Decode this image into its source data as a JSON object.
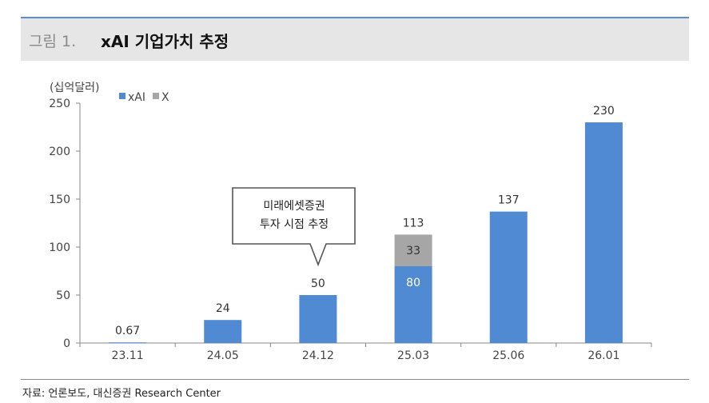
{
  "header": {
    "prefix": "그림 1.",
    "title": "xAI 기업가치 추정"
  },
  "source": "자료: 언론보도, 대신증권 Research Center",
  "callout": {
    "line1": "미래에셋증권",
    "line2": "투자 시점 추정"
  },
  "chart_data": {
    "type": "bar",
    "stacked": true,
    "ylabel": "(십억달러)",
    "ylim": [
      0,
      250
    ],
    "yticks": [
      0,
      50,
      100,
      150,
      200,
      250
    ],
    "categories": [
      "23.11",
      "24.05",
      "24.12",
      "25.03",
      "25.06",
      "26.01"
    ],
    "series": [
      {
        "name": "xAI",
        "color": "#4f8ad3",
        "values": [
          0.67,
          24,
          50,
          80,
          137,
          230
        ]
      },
      {
        "name": "X",
        "color": "#a6a6a6",
        "values": [
          0,
          0,
          0,
          33,
          0,
          0
        ]
      }
    ],
    "total_labels": [
      "0.67",
      "24",
      "50",
      "113",
      "137",
      "230"
    ],
    "segment_labels": {
      "3": [
        "80",
        "33"
      ]
    },
    "legend_position": "top-left",
    "grid": false
  }
}
